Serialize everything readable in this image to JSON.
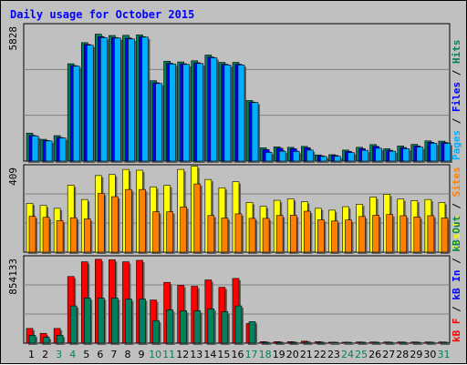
{
  "colors": {
    "title": "#0000ff",
    "hits": "#00805c",
    "files": "#0000ff",
    "pages": "#00b0ff",
    "visits": "#ffff00",
    "sites": "#ff8000",
    "kb_in": "#0000ff",
    "kb_out": "#00805c",
    "kb_f": "#ff0000",
    "weekend_day": "#00805c",
    "weekday": "#000000"
  },
  "chart_data": {
    "type": "bar",
    "title": "Daily usage for October 2015",
    "days": [
      "1",
      "2",
      "3",
      "4",
      "5",
      "6",
      "7",
      "8",
      "9",
      "10",
      "11",
      "12",
      "13",
      "14",
      "15",
      "16",
      "17",
      "18",
      "19",
      "20",
      "21",
      "22",
      "23",
      "24",
      "25",
      "26",
      "27",
      "28",
      "29",
      "30",
      "31"
    ],
    "weekend_days": [
      "3",
      "4",
      "10",
      "11",
      "17",
      "18",
      "24",
      "25",
      "31"
    ],
    "panels": [
      {
        "id": "usage",
        "ymax_label": "5828",
        "ylim": [
          0,
          5828
        ],
        "right_label": [
          {
            "text": "Pages",
            "color": "#00b0ff"
          },
          {
            "text": " / ",
            "color": "#000000"
          },
          {
            "text": "Files",
            "color": "#0000ff"
          },
          {
            "text": " / ",
            "color": "#000000"
          },
          {
            "text": "Hits",
            "color": "#00805c"
          }
        ],
        "series": [
          {
            "name": "Hits",
            "color": "#00805c",
            "values": [
              1220,
              950,
              1110,
              4240,
              5160,
              5530,
              5470,
              5480,
              5500,
              3500,
              4350,
              4320,
              4370,
              4620,
              4300,
              4300,
              2640,
              580,
              620,
              600,
              640,
              270,
              280,
              480,
              600,
              720,
              540,
              660,
              730,
              880,
              870
            ]
          },
          {
            "name": "Files",
            "color": "#0000ff",
            "values": [
              1120,
              900,
              1030,
              4160,
              5080,
              5420,
              5380,
              5350,
              5420,
              3410,
              4260,
              4240,
              4280,
              4530,
              4220,
              4220,
              2570,
              500,
              560,
              540,
              580,
              230,
              250,
              420,
              540,
              640,
              470,
              590,
              660,
              820,
              810
            ]
          },
          {
            "name": "Pages",
            "color": "#00b0ff",
            "values": [
              1100,
              880,
              1010,
              4140,
              5050,
              5380,
              5360,
              5320,
              5400,
              3380,
              4230,
              4210,
              4250,
              4500,
              4190,
              4190,
              2550,
              380,
              430,
              420,
              480,
              200,
              210,
              370,
              470,
              560,
              430,
              540,
              610,
              780,
              770
            ]
          }
        ]
      },
      {
        "id": "visitors",
        "ymax_label": "409",
        "ylim": [
          0,
          409
        ],
        "right_label": [
          {
            "text": "Visits",
            "color": "#ffff00"
          },
          {
            "text": " / ",
            "color": "#000000"
          },
          {
            "text": "Sites",
            "color": "#ff8000"
          }
        ],
        "series": [
          {
            "name": "Visits",
            "color": "#ffff00",
            "values": [
              238,
              228,
              214,
              327,
              257,
              374,
              379,
              404,
              400,
              319,
              326,
              404,
              420,
              355,
              314,
              344,
              242,
              224,
              253,
              260,
              246,
              214,
              205,
              222,
              234,
              269,
              283,
              259,
              252,
              257,
              242
            ]
          },
          {
            "name": "Sites",
            "color": "#ff8000",
            "values": [
              175,
              170,
              154,
              168,
              162,
              287,
              271,
              306,
              306,
              197,
              197,
              221,
              333,
              179,
              167,
              187,
              165,
              165,
              179,
              180,
              200,
              158,
              152,
              157,
              174,
              180,
              184,
              178,
              172,
              178,
              167
            ]
          }
        ]
      },
      {
        "id": "traffic",
        "ymax_label": "854133",
        "ylim": [
          0,
          854133
        ],
        "right_label": [
          {
            "text": "kB F",
            "color": "#ff0000"
          },
          {
            "text": " / ",
            "color": "#000000"
          },
          {
            "text": "kB In",
            "color": "#0000ff"
          },
          {
            "text": " / ",
            "color": "#000000"
          },
          {
            "text": "kB Out",
            "color": "#00805c"
          }
        ],
        "series": [
          {
            "name": "kB F",
            "color": "#ff0000",
            "values": [
              150000,
              100000,
              150000,
              680000,
              830000,
              855000,
              850000,
              830000,
              845000,
              440000,
              620000,
              590000,
              580000,
              645000,
              570000,
              660000,
              200000,
              15000,
              15000,
              15000,
              20000,
              15000,
              10000,
              10000,
              12000,
              12000,
              12000,
              12000,
              12000,
              12000,
              12000
            ]
          },
          {
            "name": "kB Out",
            "color": "#00805c",
            "values": [
              80000,
              60000,
              80000,
              380000,
              460000,
              460000,
              460000,
              450000,
              450000,
              230000,
              340000,
              330000,
              330000,
              350000,
              320000,
              380000,
              220000,
              10000,
              10000,
              10000,
              12000,
              10000,
              8000,
              8000,
              10000,
              10000,
              10000,
              10000,
              10000,
              10000,
              10000
            ]
          }
        ]
      }
    ]
  }
}
